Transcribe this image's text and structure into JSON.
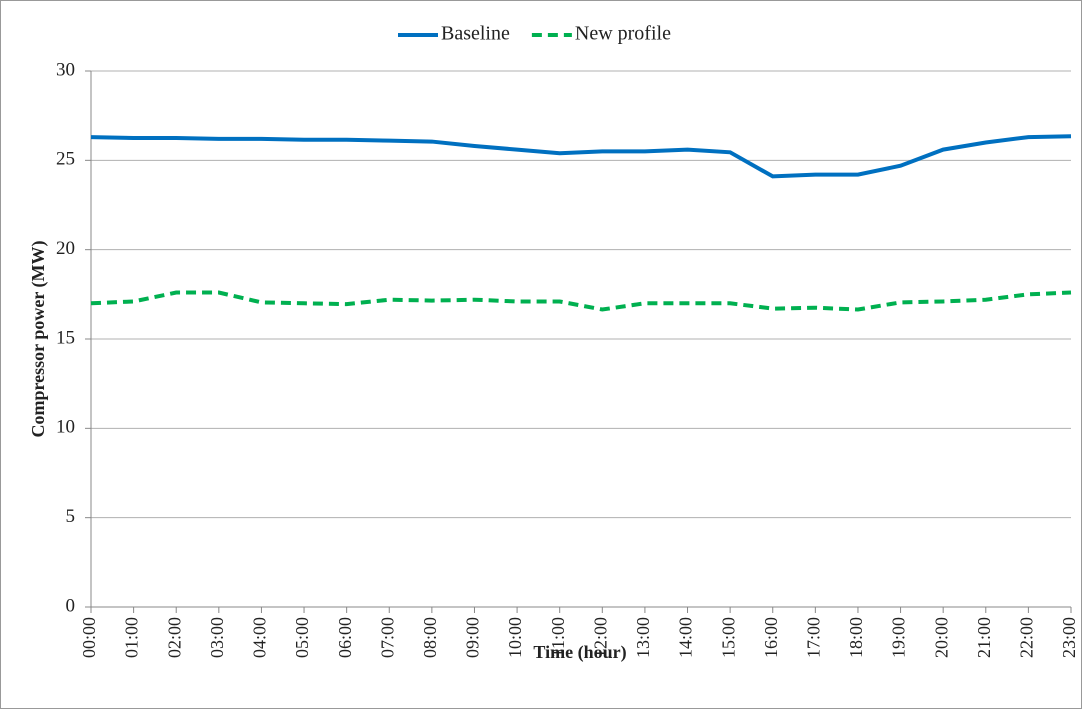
{
  "chart_data": {
    "type": "line",
    "categories": [
      "00:00",
      "01:00",
      "02:00",
      "03:00",
      "04:00",
      "05:00",
      "06:00",
      "07:00",
      "08:00",
      "09:00",
      "10:00",
      "11:00",
      "12:00",
      "13:00",
      "14:00",
      "15:00",
      "16:00",
      "17:00",
      "18:00",
      "19:00",
      "20:00",
      "21:00",
      "22:00",
      "23:00"
    ],
    "series": [
      {
        "name": "Baseline",
        "color": "#0070c0",
        "dash": false,
        "values": [
          26.3,
          26.25,
          26.25,
          26.2,
          26.2,
          26.15,
          26.15,
          26.1,
          26.05,
          25.8,
          25.6,
          25.4,
          25.5,
          25.5,
          25.6,
          25.45,
          24.1,
          24.2,
          24.2,
          24.7,
          25.6,
          26.0,
          26.3,
          26.35
        ]
      },
      {
        "name": "New profile",
        "color": "#00b050",
        "dash": true,
        "values": [
          17.0,
          17.1,
          17.6,
          17.6,
          17.05,
          17.0,
          16.95,
          17.2,
          17.15,
          17.2,
          17.1,
          17.1,
          16.65,
          17.0,
          17.0,
          17.0,
          16.7,
          16.75,
          16.65,
          17.05,
          17.1,
          17.2,
          17.5,
          17.6
        ]
      }
    ],
    "ylabel": "Compressor power (MW)",
    "xlabel": "Time (hour)",
    "ylim": [
      0,
      30
    ],
    "yticks": [
      0,
      5,
      10,
      15,
      20,
      25,
      30
    ],
    "grid": true,
    "legend": "top"
  }
}
